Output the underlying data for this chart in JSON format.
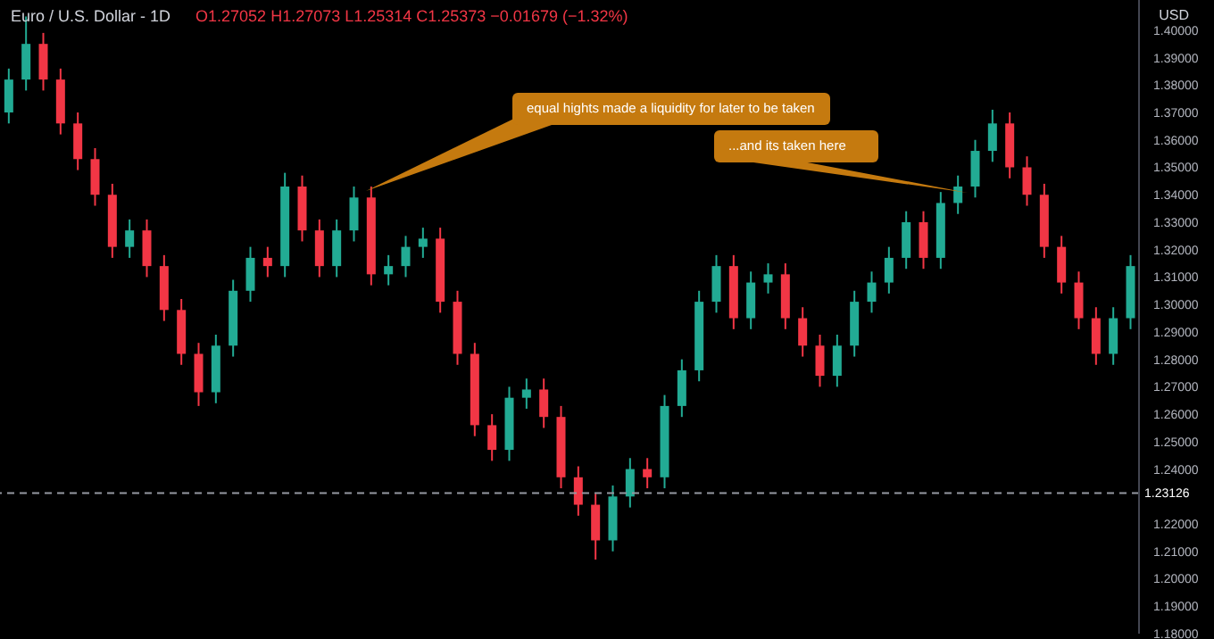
{
  "chart_data": {
    "type": "candlestick",
    "title": "Euro / U.S. Dollar - 1D",
    "subtitle": "O1.27052 H1.27073 L1.25314 C1.25373 −0.01679 (−1.32%)",
    "ylabel": "USD",
    "categories": [
      null,
      null,
      null,
      null,
      null,
      null,
      null,
      null,
      null,
      null,
      null,
      null,
      null,
      null,
      null,
      null,
      null,
      null,
      null,
      null,
      null,
      null,
      null,
      null,
      null,
      null,
      null,
      null,
      null,
      null,
      null,
      null,
      null,
      null,
      null,
      null,
      null,
      null,
      null,
      null,
      null,
      null,
      null,
      null,
      null,
      null,
      null,
      null,
      null,
      null,
      null,
      null,
      null,
      null,
      null,
      null,
      null,
      null,
      null,
      null,
      null,
      null,
      null,
      null,
      null,
      null
    ],
    "ohlc": [
      [
        1.37,
        1.386,
        1.366,
        1.382
      ],
      [
        1.382,
        1.405,
        1.378,
        1.395
      ],
      [
        1.395,
        1.399,
        1.378,
        1.382
      ],
      [
        1.382,
        1.386,
        1.362,
        1.366
      ],
      [
        1.366,
        1.37,
        1.349,
        1.353
      ],
      [
        1.353,
        1.357,
        1.336,
        1.34
      ],
      [
        1.34,
        1.344,
        1.317,
        1.321
      ],
      [
        1.321,
        1.331,
        1.317,
        1.327
      ],
      [
        1.327,
        1.331,
        1.31,
        1.314
      ],
      [
        1.314,
        1.318,
        1.294,
        1.298
      ],
      [
        1.298,
        1.302,
        1.278,
        1.282
      ],
      [
        1.282,
        1.286,
        1.263,
        1.268
      ],
      [
        1.268,
        1.289,
        1.264,
        1.285
      ],
      [
        1.285,
        1.309,
        1.281,
        1.305
      ],
      [
        1.305,
        1.321,
        1.301,
        1.317
      ],
      [
        1.317,
        1.321,
        1.31,
        1.314
      ],
      [
        1.314,
        1.348,
        1.31,
        1.343
      ],
      [
        1.343,
        1.347,
        1.323,
        1.327
      ],
      [
        1.327,
        1.331,
        1.31,
        1.314
      ],
      [
        1.314,
        1.331,
        1.31,
        1.327
      ],
      [
        1.327,
        1.343,
        1.323,
        1.339
      ],
      [
        1.339,
        1.343,
        1.307,
        1.311
      ],
      [
        1.311,
        1.318,
        1.307,
        1.314
      ],
      [
        1.314,
        1.325,
        1.31,
        1.321
      ],
      [
        1.321,
        1.328,
        1.317,
        1.324
      ],
      [
        1.324,
        1.328,
        1.297,
        1.301
      ],
      [
        1.301,
        1.305,
        1.278,
        1.282
      ],
      [
        1.282,
        1.286,
        1.252,
        1.256
      ],
      [
        1.256,
        1.26,
        1.243,
        1.247
      ],
      [
        1.247,
        1.27,
        1.243,
        1.266
      ],
      [
        1.266,
        1.273,
        1.262,
        1.269
      ],
      [
        1.269,
        1.273,
        1.255,
        1.259
      ],
      [
        1.259,
        1.263,
        1.233,
        1.237
      ],
      [
        1.237,
        1.241,
        1.223,
        1.227
      ],
      [
        1.227,
        1.231,
        1.207,
        1.214
      ],
      [
        1.214,
        1.234,
        1.21,
        1.23
      ],
      [
        1.23,
        1.244,
        1.226,
        1.24
      ],
      [
        1.24,
        1.244,
        1.233,
        1.237
      ],
      [
        1.237,
        1.267,
        1.233,
        1.263
      ],
      [
        1.263,
        1.28,
        1.259,
        1.276
      ],
      [
        1.276,
        1.305,
        1.272,
        1.301
      ],
      [
        1.301,
        1.318,
        1.297,
        1.314
      ],
      [
        1.314,
        1.318,
        1.291,
        1.295
      ],
      [
        1.295,
        1.312,
        1.291,
        1.308
      ],
      [
        1.308,
        1.315,
        1.304,
        1.311
      ],
      [
        1.311,
        1.315,
        1.291,
        1.295
      ],
      [
        1.295,
        1.299,
        1.281,
        1.285
      ],
      [
        1.285,
        1.289,
        1.27,
        1.274
      ],
      [
        1.274,
        1.289,
        1.27,
        1.285
      ],
      [
        1.285,
        1.305,
        1.281,
        1.301
      ],
      [
        1.301,
        1.312,
        1.297,
        1.308
      ],
      [
        1.308,
        1.321,
        1.304,
        1.317
      ],
      [
        1.317,
        1.334,
        1.313,
        1.33
      ],
      [
        1.33,
        1.334,
        1.313,
        1.317
      ],
      [
        1.317,
        1.341,
        1.313,
        1.337
      ],
      [
        1.337,
        1.347,
        1.333,
        1.343
      ],
      [
        1.343,
        1.36,
        1.339,
        1.356
      ],
      [
        1.356,
        1.371,
        1.352,
        1.366
      ],
      [
        1.366,
        1.37,
        1.346,
        1.35
      ],
      [
        1.35,
        1.354,
        1.336,
        1.34
      ],
      [
        1.34,
        1.344,
        1.317,
        1.321
      ],
      [
        1.321,
        1.325,
        1.304,
        1.308
      ],
      [
        1.308,
        1.312,
        1.291,
        1.295
      ],
      [
        1.295,
        1.299,
        1.278,
        1.282
      ],
      [
        1.282,
        1.299,
        1.278,
        1.295
      ],
      [
        1.295,
        1.318,
        1.291,
        1.314
      ]
    ],
    "colors": [
      "#22ab94",
      "#22ab94",
      "#f23645",
      "#f23645",
      "#f23645",
      "#f23645",
      "#f23645",
      "#22ab94",
      "#f23645",
      "#f23645",
      "#f23645",
      "#f23645",
      "#22ab94",
      "#22ab94",
      "#22ab94",
      "#f23645",
      "#22ab94",
      "#f23645",
      "#f23645",
      "#22ab94",
      "#22ab94",
      "#f23645",
      "#22ab94",
      "#22ab94",
      "#22ab94",
      "#f23645",
      "#f23645",
      "#f23645",
      "#f23645",
      "#22ab94",
      "#22ab94",
      "#f23645",
      "#f23645",
      "#f23645",
      "#f23645",
      "#22ab94",
      "#22ab94",
      "#f23645",
      "#22ab94",
      "#22ab94",
      "#22ab94",
      "#22ab94",
      "#f23645",
      "#22ab94",
      "#22ab94",
      "#f23645",
      "#f23645",
      "#f23645",
      "#22ab94",
      "#22ab94",
      "#22ab94",
      "#22ab94",
      "#22ab94",
      "#f23645",
      "#22ab94",
      "#22ab94",
      "#22ab94",
      "#22ab94",
      "#f23645",
      "#f23645",
      "#f23645",
      "#f23645",
      "#f23645",
      "#f23645",
      "#22ab94",
      "#22ab94"
    ],
    "ylim": [
      1.18,
      1.411
    ],
    "yticks": [
      {
        "value": 1.18,
        "label": "1.18000"
      },
      {
        "value": 1.19,
        "label": "1.19000"
      },
      {
        "value": 1.2,
        "label": "1.20000"
      },
      {
        "value": 1.21,
        "label": "1.21000"
      },
      {
        "value": 1.22,
        "label": "1.22000"
      },
      {
        "value": 1.24,
        "label": "1.24000"
      },
      {
        "value": 1.25,
        "label": "1.25000"
      },
      {
        "value": 1.26,
        "label": "1.26000"
      },
      {
        "value": 1.27,
        "label": "1.27000"
      },
      {
        "value": 1.28,
        "label": "1.28000"
      },
      {
        "value": 1.29,
        "label": "1.29000"
      },
      {
        "value": 1.3,
        "label": "1.30000"
      },
      {
        "value": 1.31,
        "label": "1.31000"
      },
      {
        "value": 1.32,
        "label": "1.32000"
      },
      {
        "value": 1.33,
        "label": "1.33000"
      },
      {
        "value": 1.34,
        "label": "1.34000"
      },
      {
        "value": 1.35,
        "label": "1.35000"
      },
      {
        "value": 1.36,
        "label": "1.36000"
      },
      {
        "value": 1.37,
        "label": "1.37000"
      },
      {
        "value": 1.38,
        "label": "1.38000"
      },
      {
        "value": 1.39,
        "label": "1.39000"
      },
      {
        "value": 1.4,
        "label": "1.40000"
      }
    ],
    "ref_lines": [
      {
        "axis": "y",
        "value": 1.23126,
        "label": "1.23126",
        "color": "#9598a1",
        "line_style": "dashed"
      }
    ],
    "annotations": [
      "equal hights made a liquidity for later to be taken",
      "...and its taken here"
    ]
  }
}
